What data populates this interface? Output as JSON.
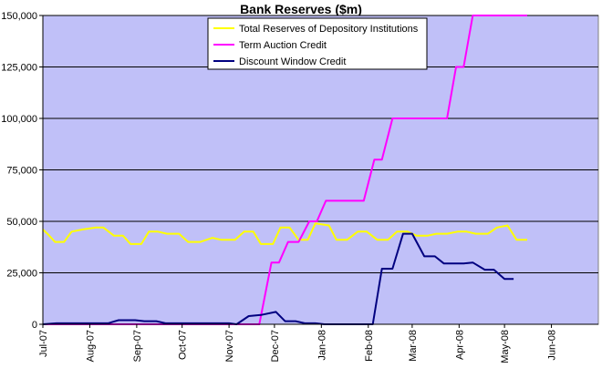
{
  "chart_data": {
    "type": "line",
    "title": "Bank Reserves ($m)",
    "xlabel": "",
    "ylabel": "",
    "ylim": [
      0,
      150000
    ],
    "y_ticks": [
      "0",
      "25,000",
      "50,000",
      "75,000",
      "100,000",
      "125,000",
      "150,000"
    ],
    "y_tick_values": [
      0,
      25000,
      50000,
      75000,
      100000,
      125000,
      150000
    ],
    "x_tick_labels": [
      "Jul-07",
      "Aug-07",
      "Sep-07",
      "Oct-07",
      "Nov-07",
      "Dec-07",
      "Jan-08",
      "Feb-08",
      "Mar-08",
      "Apr-08",
      "May-08",
      "Jun-08"
    ],
    "x_tick_dates": [
      "2007-07-01",
      "2007-08-01",
      "2007-09-01",
      "2007-10-01",
      "2007-11-01",
      "2007-12-01",
      "2008-01-01",
      "2008-02-01",
      "2008-03-01",
      "2008-04-01",
      "2008-05-01",
      "2008-06-01"
    ],
    "xlim": [
      "2007-07-01",
      "2008-07-02"
    ],
    "grid": true,
    "legend_position": "top-center",
    "colors": {
      "plot_background": "#c0c0f8",
      "gridline": "#000000",
      "series_total_reserves": "#ffff00",
      "series_term_auction": "#ff00ff",
      "series_discount_window": "#000080"
    },
    "series": [
      {
        "name": "Total Reserves of Depository Institutions",
        "color": "#ffff00",
        "points": [
          [
            "2007-07-01",
            46000
          ],
          [
            "2007-07-04",
            44000
          ],
          [
            "2007-07-09",
            40000
          ],
          [
            "2007-07-15",
            40000
          ],
          [
            "2007-07-20",
            45000
          ],
          [
            "2007-07-27",
            46000
          ],
          [
            "2007-08-05",
            47000
          ],
          [
            "2007-08-10",
            47000
          ],
          [
            "2007-08-17",
            43000
          ],
          [
            "2007-08-23",
            43000
          ],
          [
            "2007-08-28",
            39000
          ],
          [
            "2007-09-04",
            39000
          ],
          [
            "2007-09-09",
            45000
          ],
          [
            "2007-09-15",
            45000
          ],
          [
            "2007-09-21",
            44000
          ],
          [
            "2007-09-29",
            44000
          ],
          [
            "2007-10-05",
            40000
          ],
          [
            "2007-10-13",
            40000
          ],
          [
            "2007-10-21",
            42000
          ],
          [
            "2007-10-27",
            41000
          ],
          [
            "2007-11-05",
            41000
          ],
          [
            "2007-11-11",
            45000
          ],
          [
            "2007-11-17",
            45000
          ],
          [
            "2007-11-22",
            39000
          ],
          [
            "2007-11-30",
            39000
          ],
          [
            "2007-12-05",
            47000
          ],
          [
            "2007-12-11",
            47000
          ],
          [
            "2007-12-17",
            41000
          ],
          [
            "2007-12-23",
            41000
          ],
          [
            "2007-12-28",
            49000
          ],
          [
            "2008-01-06",
            48000
          ],
          [
            "2008-01-11",
            41000
          ],
          [
            "2008-01-18",
            41000
          ],
          [
            "2008-01-25",
            45000
          ],
          [
            "2008-01-31",
            45000
          ],
          [
            "2008-02-07",
            41000
          ],
          [
            "2008-02-14",
            41000
          ],
          [
            "2008-02-20",
            45000
          ],
          [
            "2008-02-27",
            45000
          ],
          [
            "2008-03-04",
            43000
          ],
          [
            "2008-03-11",
            43000
          ],
          [
            "2008-03-17",
            44000
          ],
          [
            "2008-03-24",
            44000
          ],
          [
            "2008-03-31",
            45000
          ],
          [
            "2008-04-06",
            45000
          ],
          [
            "2008-04-12",
            44000
          ],
          [
            "2008-04-20",
            44000
          ],
          [
            "2008-04-26",
            47000
          ],
          [
            "2008-05-03",
            48000
          ],
          [
            "2008-05-09",
            41000
          ],
          [
            "2008-05-16",
            41000
          ]
        ]
      },
      {
        "name": "Term Auction Credit",
        "color": "#ff00ff",
        "points": [
          [
            "2007-07-01",
            0
          ],
          [
            "2007-11-21",
            0
          ],
          [
            "2007-11-29",
            30000
          ],
          [
            "2007-12-04",
            30000
          ],
          [
            "2007-12-10",
            40000
          ],
          [
            "2007-12-17",
            40000
          ],
          [
            "2007-12-24",
            50000
          ],
          [
            "2007-12-29",
            50000
          ],
          [
            "2008-01-04",
            60000
          ],
          [
            "2008-01-29",
            60000
          ],
          [
            "2008-02-05",
            80000
          ],
          [
            "2008-02-10",
            80000
          ],
          [
            "2008-02-17",
            100000
          ],
          [
            "2008-03-24",
            100000
          ],
          [
            "2008-03-30",
            125000
          ],
          [
            "2008-04-04",
            125000
          ],
          [
            "2008-04-10",
            150000
          ],
          [
            "2008-05-16",
            150000
          ]
        ]
      },
      {
        "name": "Discount Window Credit",
        "color": "#000080",
        "points": [
          [
            "2007-07-01",
            0
          ],
          [
            "2007-07-10",
            500
          ],
          [
            "2007-08-13",
            500
          ],
          [
            "2007-08-20",
            2000
          ],
          [
            "2007-08-31",
            2000
          ],
          [
            "2007-09-06",
            1500
          ],
          [
            "2007-09-14",
            1500
          ],
          [
            "2007-09-20",
            500
          ],
          [
            "2007-11-01",
            500
          ],
          [
            "2007-11-06",
            0
          ],
          [
            "2007-11-14",
            4000
          ],
          [
            "2007-11-22",
            4500
          ],
          [
            "2007-12-02",
            6000
          ],
          [
            "2007-12-08",
            1500
          ],
          [
            "2007-12-15",
            1500
          ],
          [
            "2007-12-21",
            500
          ],
          [
            "2007-12-28",
            500
          ],
          [
            "2008-01-03",
            0
          ],
          [
            "2008-02-04",
            0
          ],
          [
            "2008-02-10",
            27000
          ],
          [
            "2008-02-17",
            27000
          ],
          [
            "2008-02-24",
            44000
          ],
          [
            "2008-03-01",
            44000
          ],
          [
            "2008-03-09",
            33000
          ],
          [
            "2008-03-16",
            33000
          ],
          [
            "2008-03-22",
            29500
          ],
          [
            "2008-04-04",
            29500
          ],
          [
            "2008-04-10",
            30000
          ],
          [
            "2008-04-18",
            26500
          ],
          [
            "2008-04-24",
            26500
          ],
          [
            "2008-05-01",
            22000
          ],
          [
            "2008-05-07",
            22000
          ]
        ]
      }
    ]
  }
}
